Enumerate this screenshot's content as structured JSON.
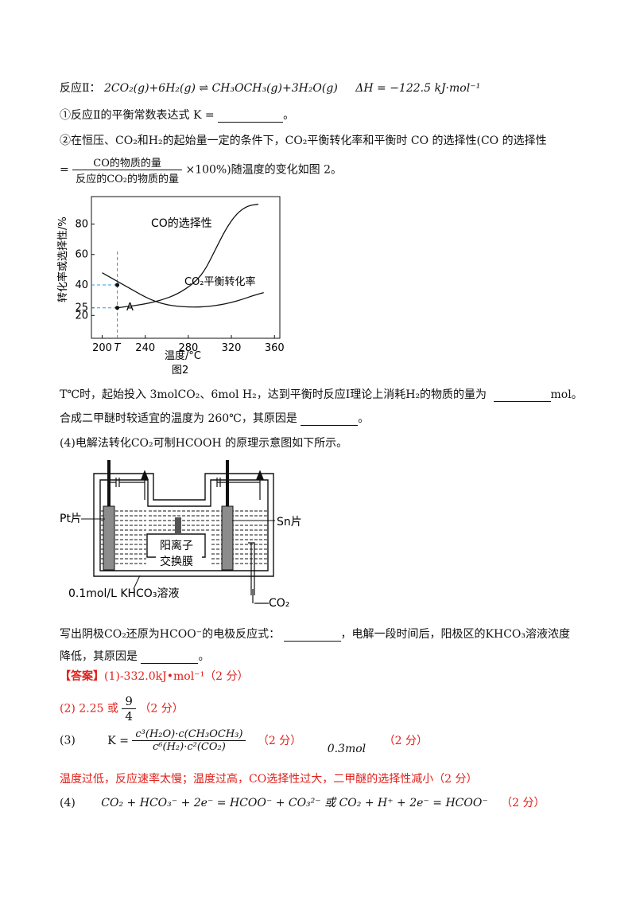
{
  "reaction2": {
    "prefix": "反应Ⅱ：",
    "equation": "2CO₂(g)+6H₂(g) ⇌ CH₃OCH₃(g)+3H₂O(g)",
    "dh": "ΔH = −122.5 kJ·mol⁻¹"
  },
  "q1": {
    "text": "①反应Ⅱ的平衡常数表达式 K =",
    "end": "。"
  },
  "q2": {
    "line1": "②在恒压、CO₂和H₂的起始量一定的条件下，CO₂平衡转化率和平衡时 CO 的选择性(CO 的选择性",
    "eq": "=",
    "frac_num": "CO的物质的量",
    "frac_den": "反应的CO₂的物质的量",
    "tail": "×100%)随温度的变化如图 2。"
  },
  "figure2": {
    "caption": "图2",
    "ylabel": "转化率或选择性/%",
    "xlabel": "温度/°C",
    "co_label": "CO的选择性",
    "co2_label": "CO₂平衡转化率",
    "point_label": "A",
    "xticks": [
      "200",
      "T",
      "240",
      "280",
      "320",
      "360"
    ],
    "yticks": [
      "80",
      "60",
      "40",
      "25",
      "20"
    ]
  },
  "chart_data": {
    "type": "line",
    "xlabel": "温度/°C",
    "ylabel": "转化率或选择性/%",
    "xlim": [
      190,
      365
    ],
    "ylim": [
      5,
      98
    ],
    "series": [
      {
        "name": "CO的选择性",
        "x": [
          214,
          225,
          240,
          255,
          270,
          285,
          295,
          305,
          315,
          325,
          335,
          345
        ],
        "y": [
          25,
          26,
          27.5,
          30,
          34,
          41,
          49,
          63,
          77,
          87,
          92,
          93
        ]
      },
      {
        "name": "CO₂平衡转化率",
        "x": [
          200,
          210,
          220,
          230,
          240,
          250,
          260,
          270,
          280,
          290,
          300,
          310,
          320,
          330,
          340,
          350
        ],
        "y": [
          48,
          44,
          40,
          36,
          32,
          29,
          27,
          26,
          25.5,
          25.5,
          26,
          27,
          28.5,
          30.5,
          33,
          35
        ]
      }
    ],
    "points": [
      {
        "label": "A",
        "x": 214,
        "y": 25
      },
      {
        "x": 214,
        "y": 40
      }
    ]
  },
  "q3": {
    "l1a": "T℃时，起始投入 3molCO₂、6mol H₂，达到平衡时反应Ⅰ理论上消耗H₂的物质的量为",
    "l1b": "mol。",
    "l2": "合成二甲醚时较适宜的温度为 260℃，其原因是",
    "l2end": "。"
  },
  "q4": {
    "intro": "(4)电解法转化CO₂可制HCOOH 的原理示意图如下所示。"
  },
  "cell": {
    "pt": "Pt片",
    "sn": "Sn片",
    "membrane1": "阳离子",
    "membrane2": "交换膜",
    "solution": "0.1mol/L KHCO₃溶液",
    "co2": "CO₂"
  },
  "q5": {
    "l1a": "写出阴极CO₂还原为HCOO⁻的电极反应式：",
    "l1b": "，电解一段时间后，阳极区的KHCO₃溶液浓度",
    "l2": "降低，其原因是",
    "l2end": "。"
  },
  "answer": {
    "tag": "【答案】",
    "a1": "(1)-332.0kJ•mol⁻¹（2 分）",
    "a2": "(2)  2.25 或",
    "a2num": "9",
    "a2den": "4",
    "a2tail": "（2 分）",
    "a3label": "(3)",
    "a3k": "K =",
    "a3num": "c³(H₂O)·c(CH₃OCH₃)",
    "a3den": "c⁶(H₂)·c²(CO₂)",
    "a3score": "（2 分）",
    "a3b": "0.3mol",
    "a3bscore": "（2 分）",
    "a3c": "温度过低，反应速率太慢；温度过高，CO选择性过大，二甲醚的选择性减小（2 分）",
    "a4label": "(4)",
    "a4": "CO₂ + HCO₃⁻ + 2e⁻ = HCOO⁻ + CO₃²⁻ 或 CO₂ + H⁺ + 2e⁻ = HCOO⁻",
    "a4score": "（2 分）"
  }
}
